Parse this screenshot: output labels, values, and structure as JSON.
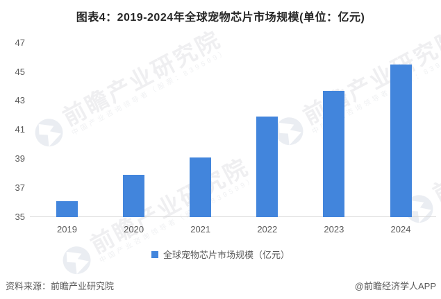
{
  "title": "图表4：2019-2024年全球宠物芯片市场规模(单位：亿元)",
  "legend": {
    "label": "全球宠物芯片市场规模（亿元）"
  },
  "footer": {
    "source": "资料来源：前瞻产业研究院",
    "credit": "@前瞻经济学人APP"
  },
  "watermark": {
    "text": "前瞻产业研究院",
    "subtext": "中国产业咨询领导者（股票：839599）"
  },
  "colors": {
    "bar": "#4285dc",
    "title_text": "#262626",
    "axis_label": "#595959",
    "axis_line": "#d9d9d9",
    "watermark_text": "#efeff1",
    "watermark_icon": "#eaedf2"
  },
  "chart_data": {
    "type": "bar",
    "categories": [
      "2019",
      "2020",
      "2021",
      "2022",
      "2023",
      "2024"
    ],
    "values": [
      36.1,
      37.9,
      39.1,
      41.9,
      43.7,
      45.5
    ],
    "title": "图表4：2019-2024年全球宠物芯片市场规模(单位：亿元)",
    "xlabel": "",
    "ylabel": "",
    "ylim": [
      35,
      47
    ],
    "yticks": [
      35,
      37,
      39,
      41,
      43,
      45,
      47
    ],
    "grid": false,
    "legend_entries": [
      "全球宠物芯片市场规模（亿元）"
    ],
    "legend_position": "bottom"
  }
}
